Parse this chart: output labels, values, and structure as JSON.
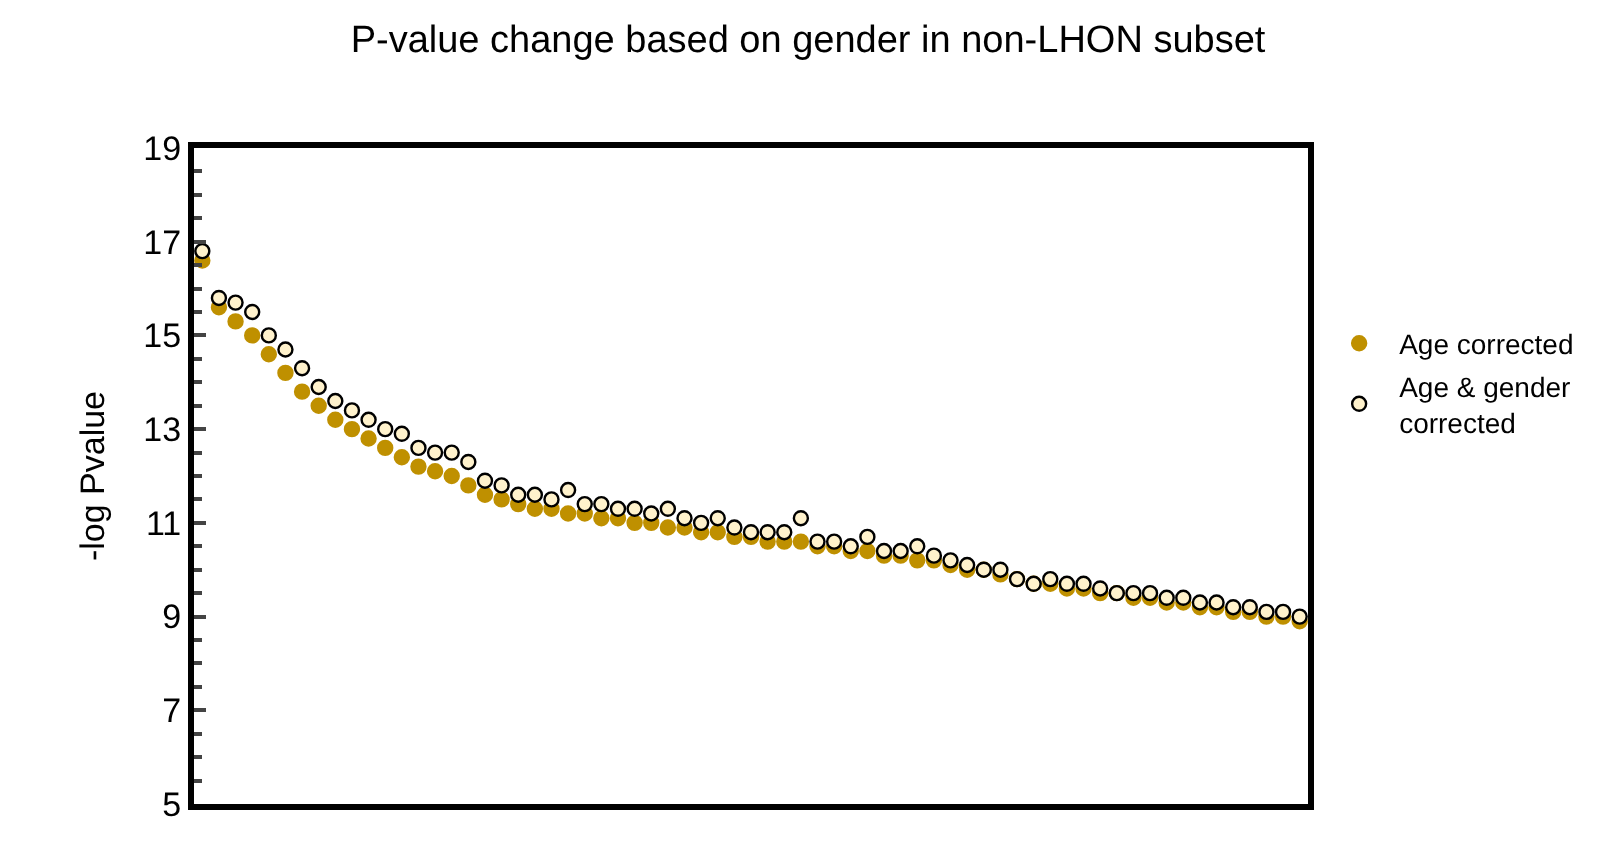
{
  "chart_data": {
    "type": "scatter",
    "title": "P-value change based on gender in non-LHON subset",
    "ylabel": "-log Pvalue",
    "categories": [
      null,
      null,
      null,
      null,
      null,
      null,
      null,
      null,
      null,
      null,
      null,
      null,
      null,
      null,
      null,
      null,
      null,
      null,
      null,
      null,
      null,
      null,
      null,
      null,
      null,
      null,
      null,
      null,
      null,
      null,
      null,
      null,
      null,
      null,
      null,
      null,
      null,
      null,
      null,
      null,
      null,
      null,
      null,
      null,
      null,
      null,
      null,
      null,
      null,
      null,
      null,
      null,
      null,
      null,
      null,
      null,
      null,
      null,
      null,
      null,
      null,
      null,
      null,
      null,
      null,
      null,
      null
    ],
    "series": [
      {
        "name": "Age corrected",
        "color": "#bf9000",
        "values": [
          16.6,
          15.6,
          15.3,
          15.0,
          14.6,
          14.2,
          13.8,
          13.5,
          13.2,
          13.0,
          12.8,
          12.6,
          12.4,
          12.2,
          12.1,
          12.0,
          11.8,
          11.6,
          11.5,
          11.4,
          11.3,
          11.3,
          11.2,
          11.2,
          11.1,
          11.1,
          11.0,
          11.0,
          10.9,
          10.9,
          10.8,
          10.8,
          10.7,
          10.7,
          10.6,
          10.6,
          10.6,
          10.5,
          10.5,
          10.4,
          10.4,
          10.3,
          10.3,
          10.2,
          10.2,
          10.1,
          10.0,
          10.0,
          9.9,
          9.8,
          9.7,
          9.7,
          9.6,
          9.6,
          9.5,
          9.5,
          9.4,
          9.4,
          9.3,
          9.3,
          9.2,
          9.2,
          9.1,
          9.1,
          9.0,
          9.0,
          8.9
        ]
      },
      {
        "name": "Age & gender corrected",
        "color": "#fff2cc",
        "values": [
          16.8,
          15.8,
          15.7,
          15.5,
          15.0,
          14.7,
          14.3,
          13.9,
          13.6,
          13.4,
          13.2,
          13.0,
          12.9,
          12.6,
          12.5,
          12.5,
          12.3,
          11.9,
          11.8,
          11.6,
          11.6,
          11.5,
          11.7,
          11.4,
          11.4,
          11.3,
          11.3,
          11.2,
          11.3,
          11.1,
          11.0,
          11.1,
          10.9,
          10.8,
          10.8,
          10.8,
          11.1,
          10.6,
          10.6,
          10.5,
          10.7,
          10.4,
          10.4,
          10.5,
          10.3,
          10.2,
          10.1,
          10.0,
          10.0,
          9.8,
          9.7,
          9.8,
          9.7,
          9.7,
          9.6,
          9.5,
          9.5,
          9.5,
          9.4,
          9.4,
          9.3,
          9.3,
          9.2,
          9.2,
          9.1,
          9.1,
          9.0
        ]
      }
    ],
    "ylim": [
      5,
      19
    ],
    "yticks": [
      5,
      7,
      9,
      11,
      13,
      15,
      17,
      19
    ],
    "legend": "right",
    "marker": "circle"
  }
}
